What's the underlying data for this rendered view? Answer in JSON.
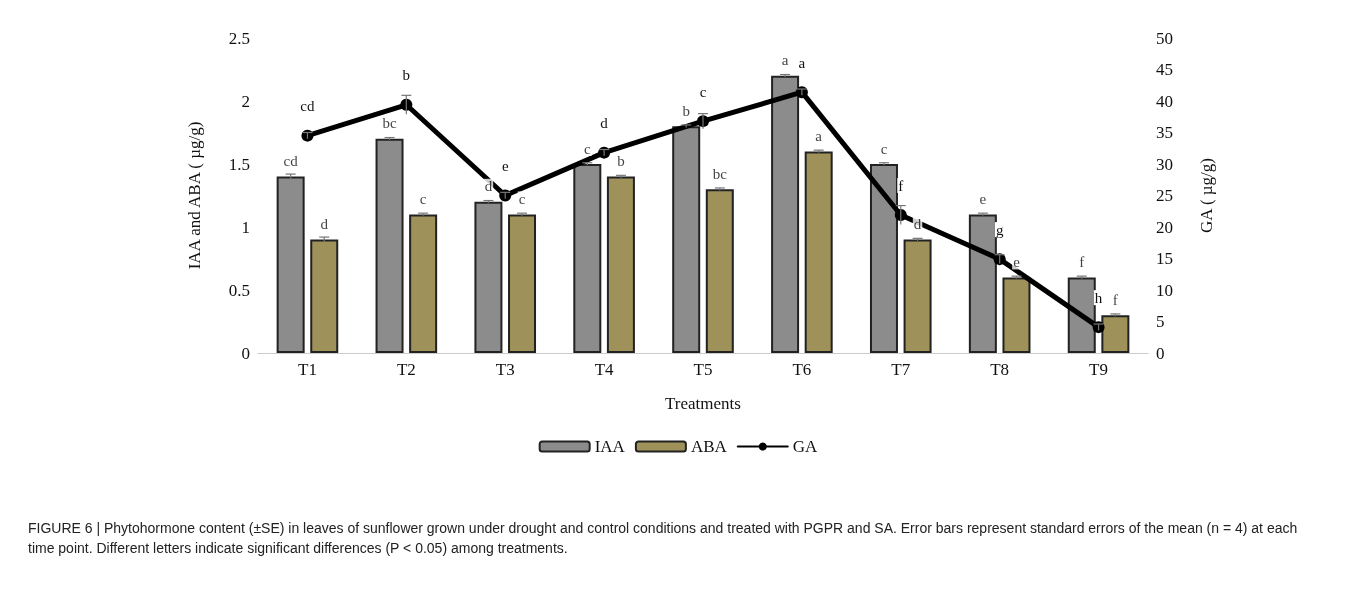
{
  "chart_data": {
    "type": "bar",
    "xlabel": "Treatments",
    "ylabel": "IAA and ABA ( µg/g)",
    "y2label": "GA ( µg/g)",
    "categories": [
      "T1",
      "T2",
      "T3",
      "T4",
      "T5",
      "T6",
      "T7",
      "T8",
      "T9"
    ],
    "series": [
      {
        "name": "IAA",
        "color": "#8c8c8c",
        "values": [
          1.4,
          1.7,
          1.2,
          1.5,
          1.8,
          2.2,
          1.5,
          1.1,
          0.6
        ],
        "errors": [
          0.02,
          0.01,
          0.01,
          0.01,
          0.01,
          0.01,
          0.01,
          0.01,
          0.01
        ],
        "value_labels": [
          "cd",
          "bc",
          "d",
          "c",
          "b",
          "a",
          "c",
          "e",
          "f"
        ]
      },
      {
        "name": "ABA",
        "color": "#9e9159",
        "values": [
          0.9,
          1.1,
          1.1,
          1.4,
          1.3,
          1.6,
          0.9,
          0.6,
          0.3
        ],
        "errors": [
          0.02,
          0.01,
          0.01,
          0.01,
          0.01,
          0.01,
          0.01,
          0.01,
          0.01
        ],
        "value_labels": [
          "d",
          "c",
          "c",
          "b",
          "bc",
          "a",
          "d",
          "e",
          "f"
        ]
      },
      {
        "name": "GA",
        "type": "line",
        "axis": "y2",
        "color": "#000000",
        "values": [
          34.5,
          39.4,
          25,
          31.8,
          36.8,
          41.4,
          21.9,
          14.9,
          4.1
        ],
        "errors": [
          0.5,
          1.5,
          0.5,
          0.5,
          1.2,
          0.5,
          1.5,
          0.7,
          0.5
        ],
        "value_labels": [
          "cd",
          "b",
          "e",
          "d",
          "c",
          "a",
          "f",
          "g",
          "h"
        ]
      }
    ],
    "ylim": [
      0,
      2.5
    ],
    "yticks": [
      0,
      0.5,
      1,
      1.5,
      2,
      2.5
    ],
    "y2lim": [
      0,
      50
    ],
    "y2ticks": [
      0,
      5,
      10,
      15,
      20,
      25,
      30,
      35,
      40,
      45,
      50
    ],
    "grid": false,
    "legend": "bottom",
    "marker": "circle",
    "line_style": "solid",
    "annotations": [
      "FIGURE 6 | Phytohormone content (±SE) in leaves of sunflower grown under drought and control conditions and treated with PGPR and SA. Error bars represent standard errors of the mean (n = 4) at each time point. Different letters indicate significant differences (P < 0.05) among treatments."
    ]
  }
}
